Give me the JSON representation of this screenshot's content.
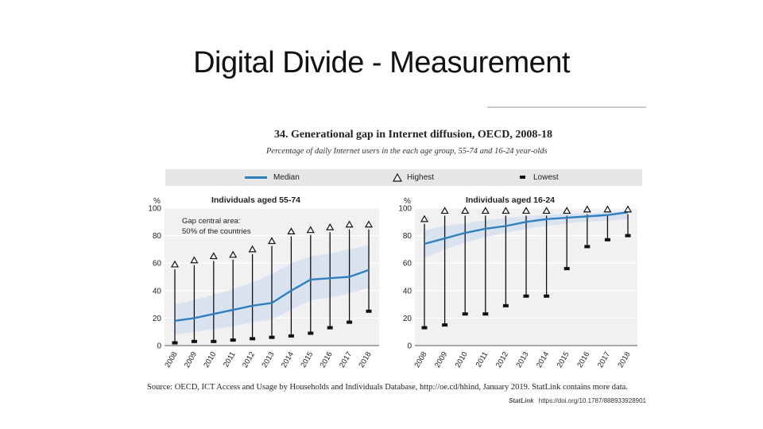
{
  "slide": {
    "title": "Digital Divide - Measurement"
  },
  "figure": {
    "title": "34. Generational gap in Internet diffusion, OECD, 2008-18",
    "subtitle": "Percentage of daily Internet users in the each age group, 55-74 and 16-24 year-olds",
    "legend": {
      "median": "Median",
      "highest": "Highest",
      "lowest": "Lowest"
    },
    "source": "Source: OECD, ICT Access and Usage by Households and Individuals Database, http://oe.cd/hhind, January 2019. StatLink contains more data.",
    "statlink_logo": "StatLink",
    "statlink_url": "https://doi.org/10.1787/888933928901",
    "colors": {
      "median": "#2f80bf",
      "band": "#d6e1ef",
      "plot_bg": "#f1f1f1",
      "marker": "#111111"
    }
  },
  "chart_data": [
    {
      "type": "line",
      "title": "Individuals aged 55-74",
      "ylabel": "%",
      "ylim": [
        0,
        100
      ],
      "yticks": [
        0,
        20,
        40,
        60,
        80,
        100
      ],
      "annotation": "Gap central area: 50% of the countries",
      "x": [
        "2008",
        "2009",
        "2010",
        "2011",
        "2012",
        "2013",
        "2014",
        "2015",
        "2016",
        "2017",
        "2018"
      ],
      "series": [
        {
          "name": "Median",
          "values": [
            18,
            20,
            23,
            26,
            29,
            31,
            40,
            48,
            49,
            50,
            55
          ]
        },
        {
          "name": "Highest",
          "values": [
            59,
            62,
            65,
            66,
            70,
            76,
            83,
            84,
            86,
            88,
            88
          ]
        },
        {
          "name": "Lowest",
          "values": [
            2,
            3,
            3,
            4,
            5,
            6,
            7,
            9,
            13,
            17,
            25
          ]
        }
      ],
      "band_low": [
        8,
        10,
        12,
        14,
        17,
        19,
        26,
        33,
        35,
        38,
        42
      ],
      "band_high": [
        30,
        33,
        37,
        41,
        46,
        52,
        60,
        65,
        67,
        70,
        73
      ],
      "grid": true
    },
    {
      "type": "line",
      "title": "Individuals aged 16-24",
      "ylabel": "%",
      "ylim": [
        0,
        100
      ],
      "yticks": [
        0,
        20,
        40,
        60,
        80,
        100
      ],
      "x": [
        "2008",
        "2009",
        "2010",
        "2011",
        "2012",
        "2013",
        "2014",
        "2015",
        "2016",
        "2017",
        "2018"
      ],
      "series": [
        {
          "name": "Median",
          "values": [
            74,
            78,
            82,
            85,
            87,
            90,
            92,
            93,
            94,
            95,
            97
          ]
        },
        {
          "name": "Highest",
          "values": [
            92,
            98,
            98,
            98,
            98,
            98,
            98,
            98,
            99,
            99,
            99
          ]
        },
        {
          "name": "Lowest",
          "values": [
            13,
            15,
            23,
            23,
            29,
            36,
            36,
            56,
            72,
            77,
            80
          ]
        }
      ],
      "band_low": [
        64,
        70,
        75,
        79,
        82,
        85,
        87,
        89,
        90,
        91,
        92
      ],
      "band_high": [
        84,
        87,
        89,
        91,
        93,
        94,
        95,
        96,
        96,
        97,
        98
      ],
      "grid": true
    }
  ]
}
